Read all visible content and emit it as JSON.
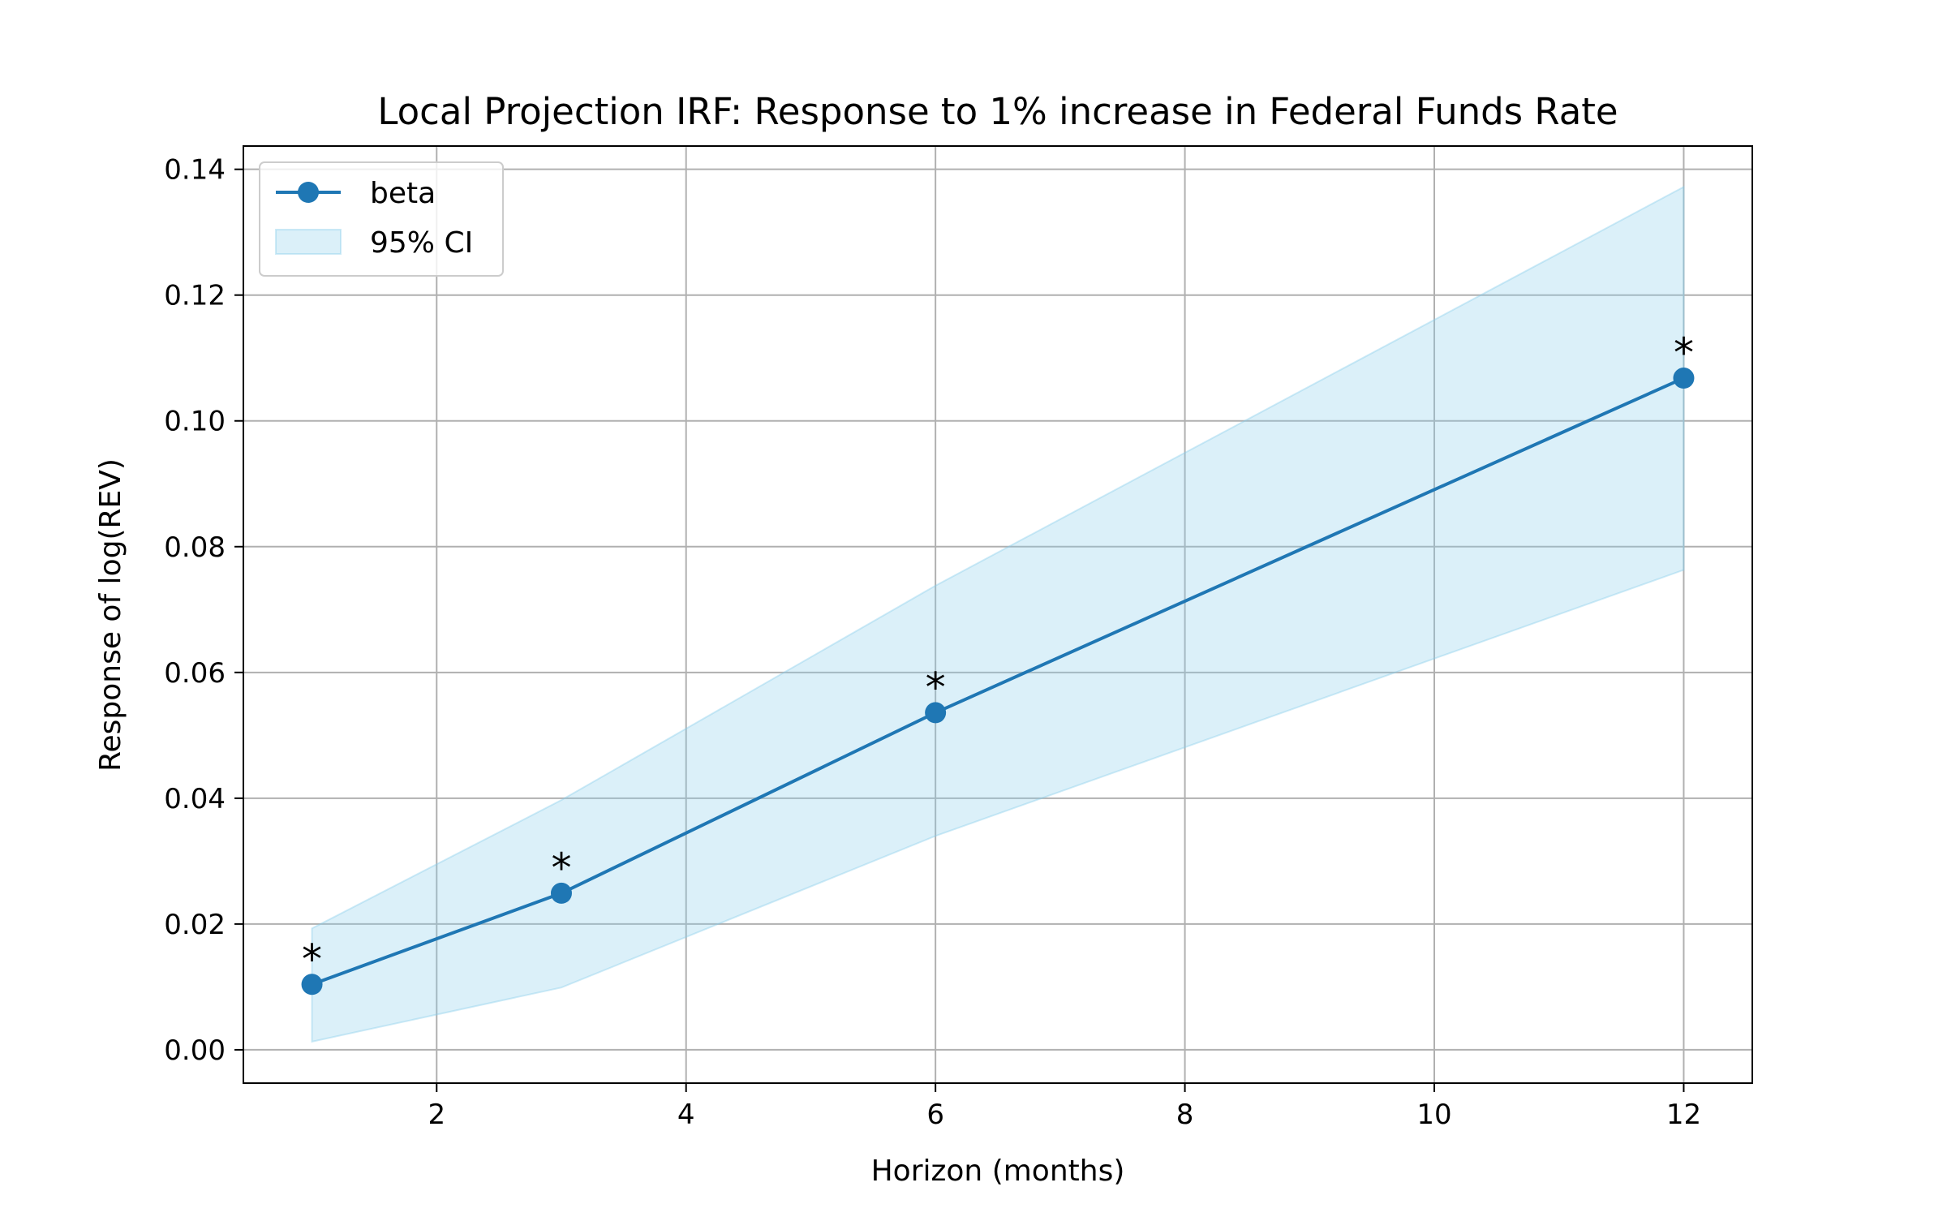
{
  "chart_data": {
    "type": "line",
    "title": "Local Projection IRF: Response to 1% increase in Federal Funds Rate",
    "xlabel": "Horizon (months)",
    "ylabel": "Response of log(REV)",
    "xlim": [
      0.45,
      12.55
    ],
    "ylim": [
      -0.0053,
      0.1437
    ],
    "xticks": [
      2,
      4,
      6,
      8,
      10,
      12
    ],
    "xtick_labels": [
      "2",
      "4",
      "6",
      "8",
      "10",
      "12"
    ],
    "yticks": [
      0.0,
      0.02,
      0.04,
      0.06,
      0.08,
      0.1,
      0.12,
      0.14
    ],
    "ytick_labels": [
      "0.00",
      "0.02",
      "0.04",
      "0.06",
      "0.08",
      "0.10",
      "0.12",
      "0.14"
    ],
    "grid": true,
    "legend_position": "top-left",
    "series": [
      {
        "name": "beta",
        "color": "#1f77b4",
        "x": [
          1,
          3,
          6,
          12
        ],
        "values": [
          0.0104,
          0.0249,
          0.0536,
          0.1068
        ],
        "annotations": [
          "*",
          "*",
          "*",
          "*"
        ]
      }
    ],
    "confidence_band": {
      "name": "95% CI",
      "color": "#87ceeb",
      "x": [
        1,
        3,
        6,
        12
      ],
      "lower": [
        0.0013,
        0.0099,
        0.034,
        0.0763
      ],
      "upper": [
        0.0193,
        0.0397,
        0.0738,
        0.1372
      ]
    }
  }
}
